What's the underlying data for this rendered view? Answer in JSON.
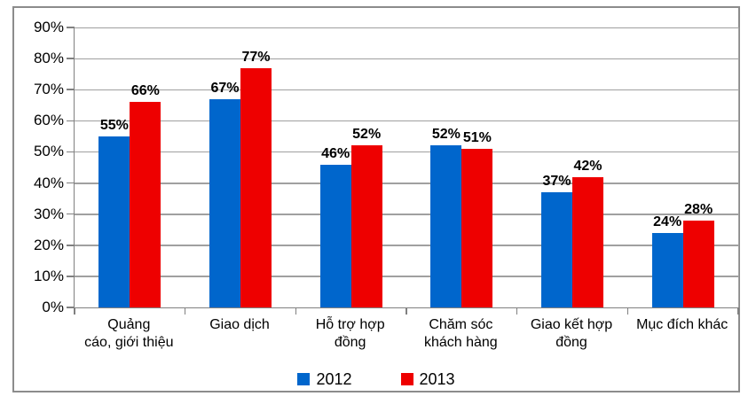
{
  "chart_data": {
    "type": "bar",
    "title": "",
    "xlabel": "",
    "ylabel": "",
    "categories": [
      "Quảng\ncáo, giới thiệu",
      "Giao dịch",
      "Hỗ trợ hợp\nđồng",
      "Chăm sóc\nkhách hàng",
      "Giao kết hợp\nđồng",
      "Mục đích khác"
    ],
    "series": [
      {
        "name": "2012",
        "color": "#0066CC",
        "values": [
          55,
          67,
          46,
          52,
          37,
          24
        ]
      },
      {
        "name": "2013",
        "color": "#EE0000",
        "values": [
          66,
          77,
          52,
          51,
          42,
          28
        ]
      }
    ],
    "value_suffix": "%",
    "ylim": [
      0,
      90
    ],
    "y_ticks": [
      "0%",
      "10%",
      "20%",
      "30%",
      "40%",
      "50%",
      "60%",
      "70%",
      "80%",
      "90%"
    ],
    "grid": true,
    "legend_position": "bottom"
  },
  "colors": {
    "series_2012": "#0066CC",
    "series_2013": "#EE0000",
    "gridline": "#A0A0A0",
    "axis": "#808080",
    "outer_border": "#8C8C8C",
    "text": "#000000",
    "background": "#FFFFFF"
  }
}
